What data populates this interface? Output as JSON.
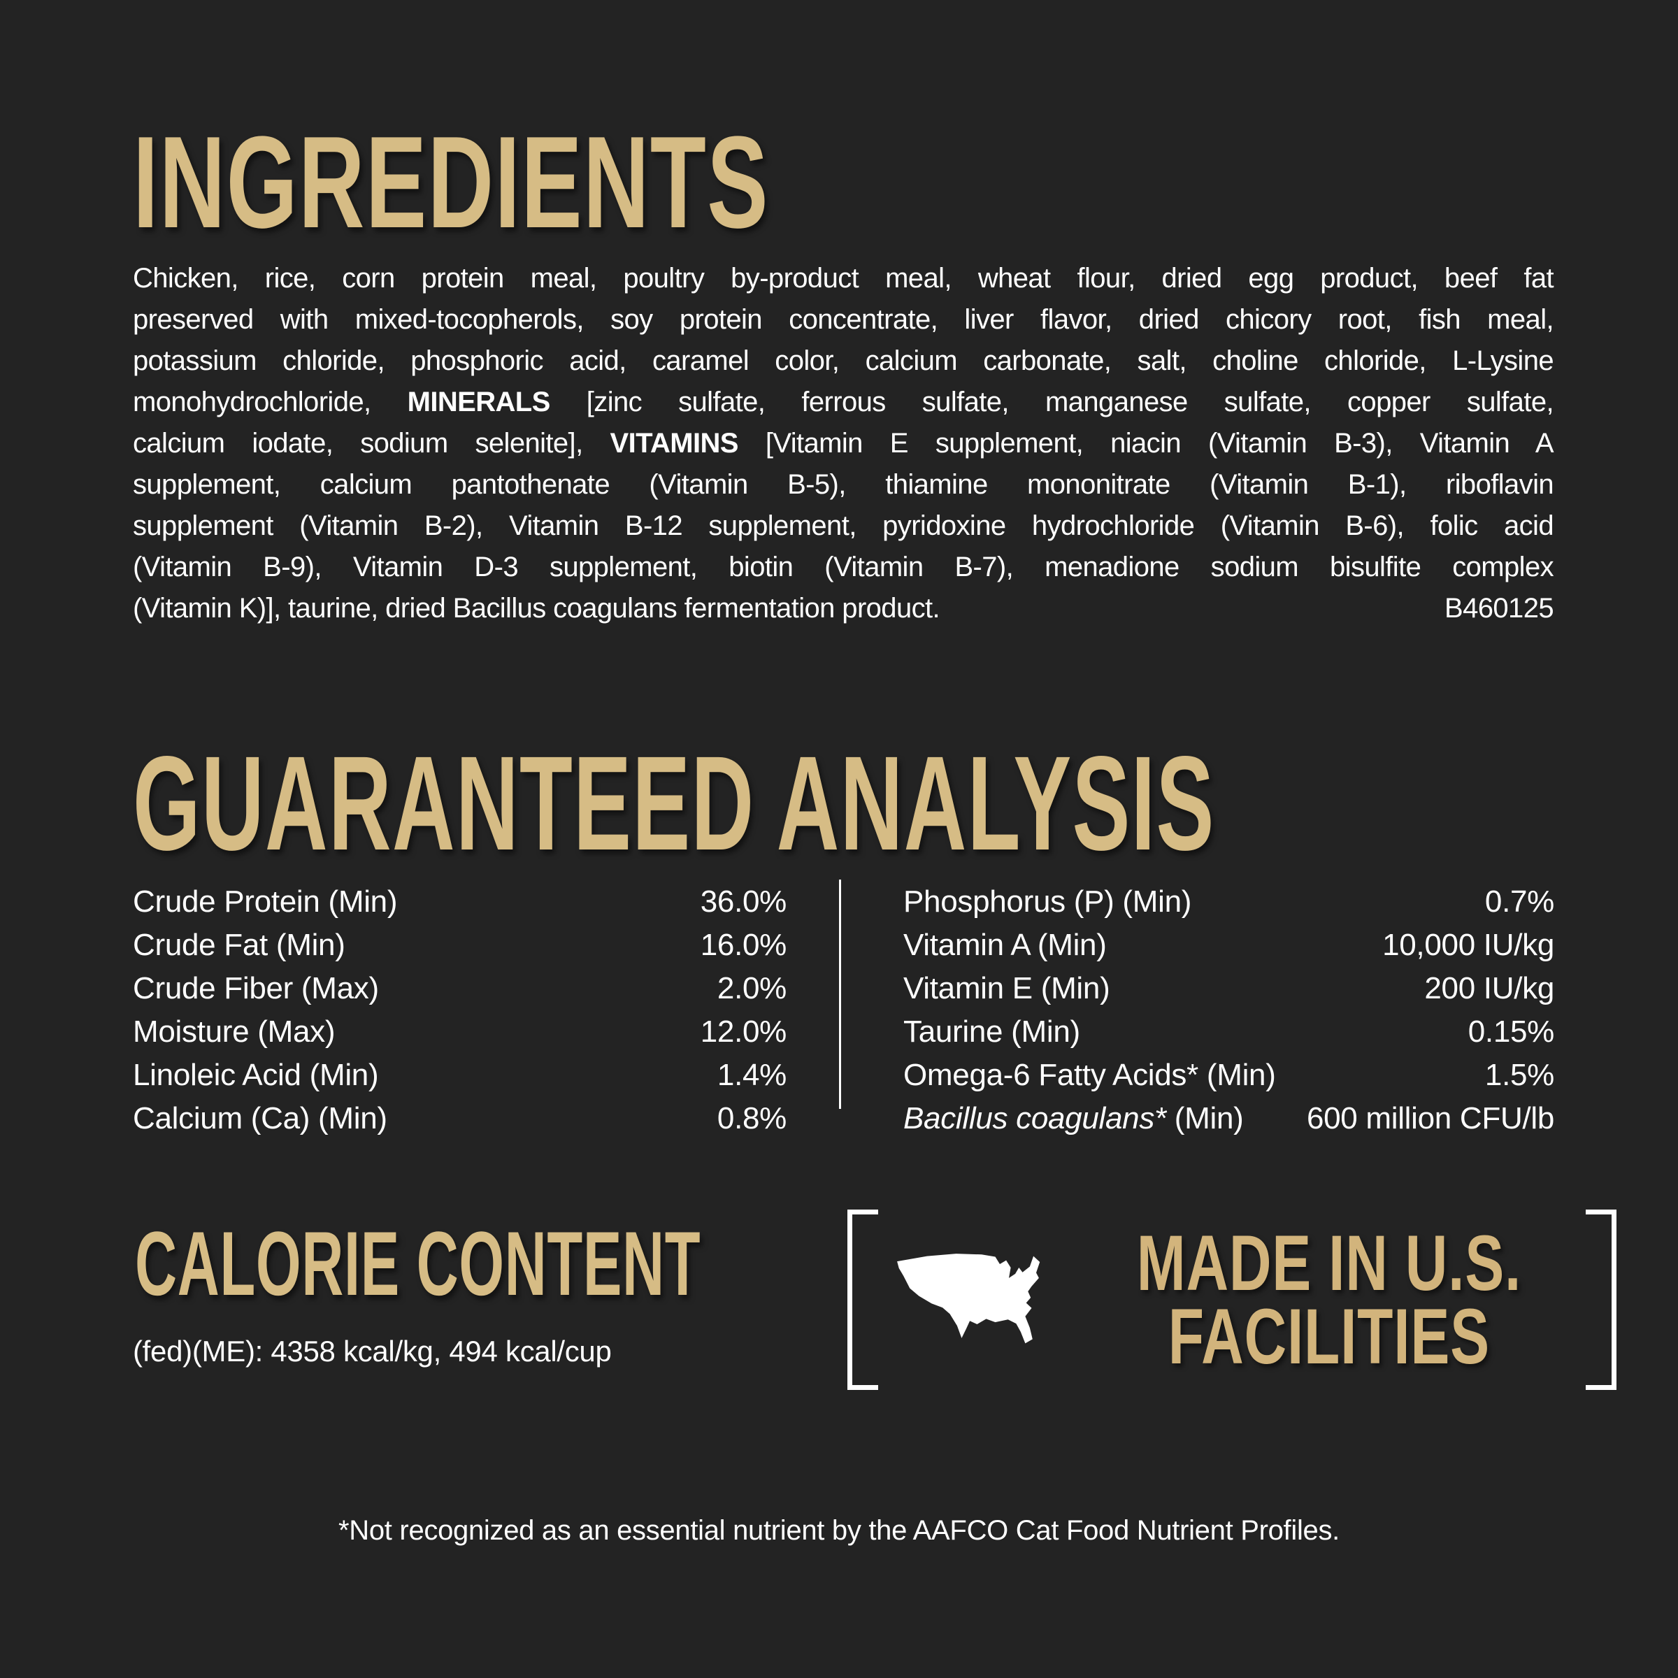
{
  "page": {
    "background_color": "#232323",
    "accent_gold": "#d6bc85",
    "made_in_gold": "#d2b47c",
    "text_color": "#ffffff"
  },
  "ingredients": {
    "title": "INGREDIENTS",
    "lines": [
      {
        "segments": [
          {
            "text": "Chicken, rice, corn protein meal, poultry by-product meal, wheat flour, dried egg product, beef fat"
          }
        ]
      },
      {
        "segments": [
          {
            "text": "preserved with mixed-tocopherols, soy protein concentrate, liver flavor, dried chicory root, fish meal,"
          }
        ]
      },
      {
        "segments": [
          {
            "text": "potassium chloride, phosphoric acid, caramel color, calcium carbonate, salt, choline chloride, L-Lysine"
          }
        ]
      },
      {
        "segments": [
          {
            "text": "monohydrochloride, "
          },
          {
            "text": "MINERALS",
            "bold": true
          },
          {
            "text": " [zinc sulfate, ferrous sulfate, manganese sulfate, copper sulfate,"
          }
        ]
      },
      {
        "segments": [
          {
            "text": "calcium iodate, sodium selenite], "
          },
          {
            "text": "VITAMINS",
            "bold": true
          },
          {
            "text": " [Vitamin E supplement, niacin (Vitamin B-3), Vitamin A"
          }
        ]
      },
      {
        "segments": [
          {
            "text": "supplement, calcium pantothenate (Vitamin B-5), thiamine mononitrate (Vitamin B-1), riboflavin"
          }
        ]
      },
      {
        "segments": [
          {
            "text": "supplement (Vitamin B-2), Vitamin B-12 supplement, pyridoxine hydrochloride (Vitamin B-6), folic acid"
          }
        ]
      },
      {
        "segments": [
          {
            "text": "(Vitamin B-9), Vitamin D-3 supplement, biotin (Vitamin B-7), menadione sodium bisulfite complex"
          }
        ]
      },
      {
        "segments": [
          {
            "text": "(Vitamin K)], taurine, dried Bacillus coagulans fermentation product."
          }
        ],
        "right": "B460125"
      }
    ]
  },
  "guaranteed_analysis": {
    "title": "GUARANTEED ANALYSIS",
    "left_rows": [
      {
        "label": [
          {
            "text": "Crude Protein (Min)"
          }
        ],
        "value": "36.0%"
      },
      {
        "label": [
          {
            "text": "Crude Fat (Min)"
          }
        ],
        "value": "16.0%"
      },
      {
        "label": [
          {
            "text": "Crude Fiber (Max)"
          }
        ],
        "value": "2.0%"
      },
      {
        "label": [
          {
            "text": "Moisture (Max)"
          }
        ],
        "value": "12.0%"
      },
      {
        "label": [
          {
            "text": "Linoleic Acid (Min)"
          }
        ],
        "value": "1.4%"
      },
      {
        "label": [
          {
            "text": "Calcium (Ca) (Min)"
          }
        ],
        "value": "0.8%"
      }
    ],
    "right_rows": [
      {
        "label": [
          {
            "text": "Phosphorus (P) (Min)"
          }
        ],
        "value": "0.7%"
      },
      {
        "label": [
          {
            "text": "Vitamin A (Min)"
          }
        ],
        "value": "10,000 IU/kg"
      },
      {
        "label": [
          {
            "text": "Vitamin E (Min)"
          }
        ],
        "value": "200 IU/kg"
      },
      {
        "label": [
          {
            "text": "Taurine (Min)"
          }
        ],
        "value": "0.15%"
      },
      {
        "label": [
          {
            "text": "Omega-6 Fatty Acids* (Min)"
          }
        ],
        "value": "1.5%"
      },
      {
        "label": [
          {
            "text": "Bacillus coagulans*",
            "italic": true
          },
          {
            "text": " (Min)"
          }
        ],
        "value": "600 million CFU/lb"
      }
    ]
  },
  "calorie_content": {
    "title": "CALORIE CONTENT",
    "line": "(fed)(ME): 4358 kcal/kg, 494 kcal/cup"
  },
  "made_in_us": {
    "line1": "MADE IN U.S.",
    "line2": "FACILITIES",
    "icon": "usa-map-icon"
  },
  "footnote": "*Not recognized as an essential nutrient by the AAFCO Cat Food Nutrient Profiles."
}
